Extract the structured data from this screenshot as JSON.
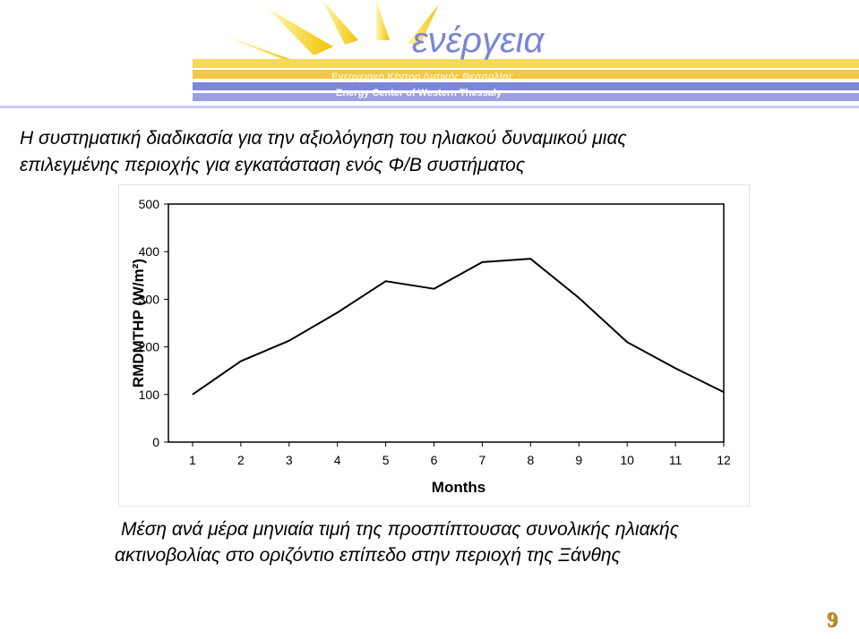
{
  "header": {
    "logo": "ενέργεια",
    "line1": "Ενεργειακό Κέντρο Δυτικής Θεσσαλίας",
    "line2": "Energy Center of Western Thessaly"
  },
  "title": [
    "Η συστηματική διαδικασία για την αξιολόγηση του ηλιακού δυναμικού μιας",
    "επιλεγμένης περιοχής για εγκατάσταση ενός Φ/Β συστήματος"
  ],
  "chart_data": {
    "type": "line",
    "xlabel": "Months",
    "ylabel": "RMDMTHP   (W/m²)",
    "x": [
      1,
      2,
      3,
      4,
      5,
      6,
      7,
      8,
      9,
      10,
      11,
      12
    ],
    "series": [
      {
        "name": "RMDMTHP",
        "color": "#000000",
        "values": [
          100,
          170,
          213,
          272,
          338,
          322,
          378,
          385,
          303,
          210,
          155,
          105
        ]
      }
    ],
    "xlim": [
      0.5,
      12
    ],
    "xticks": [
      1,
      2,
      3,
      4,
      5,
      6,
      7,
      8,
      9,
      10,
      11,
      12
    ],
    "ylim": [
      0,
      500
    ],
    "yticks": [
      0,
      100,
      200,
      300,
      400,
      500
    ],
    "grid": false
  },
  "caption": [
    "Μέση ανά μέρα μηνιαία τιμή της προσπίπτουσας συνολικής ηλιακής",
    "ακτινοβολίας στο οριζόντιο επίπεδο στην περιοχή της Ξάνθης"
  ],
  "page_number": "9"
}
